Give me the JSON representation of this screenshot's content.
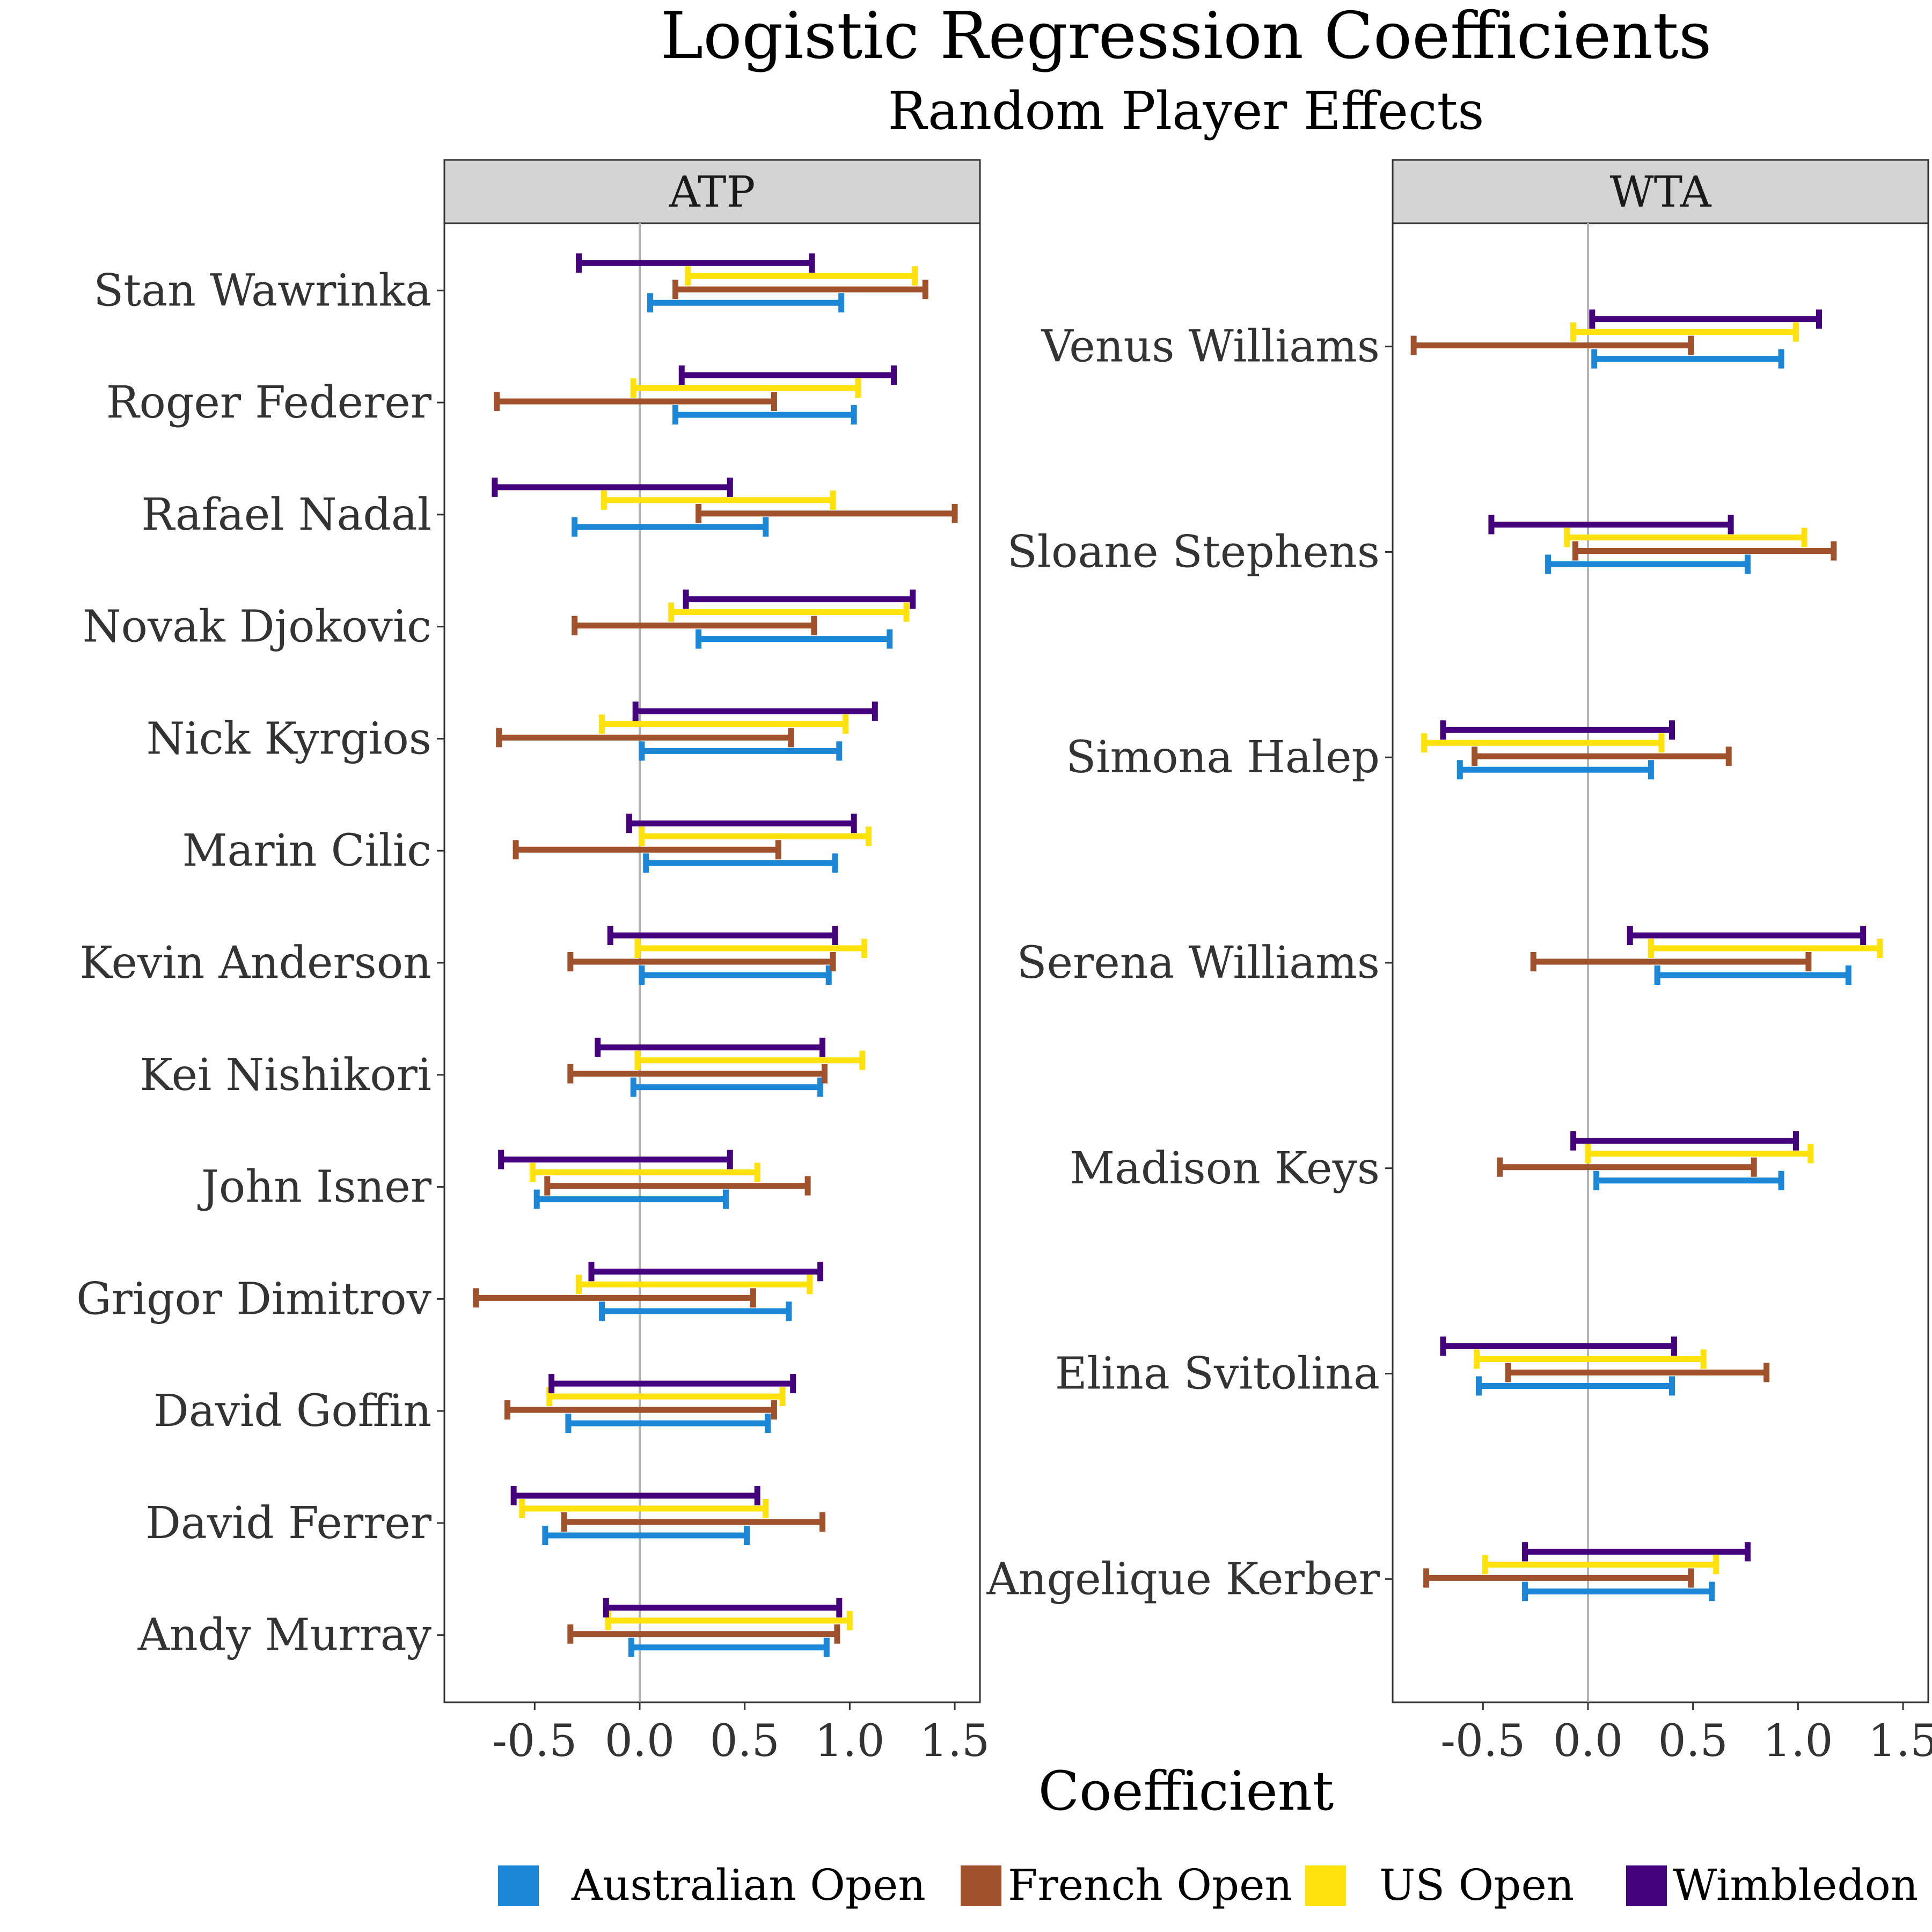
{
  "chart_data": {
    "type": "errorbar",
    "title": "Logistic Regression Coefficients",
    "subtitle": "Random Player Effects",
    "xlabel": "Coefficient",
    "xlim": [
      -0.93,
      1.62
    ],
    "xticks": [
      -0.5,
      0.0,
      0.5,
      1.0,
      1.5
    ],
    "xtick_labels": [
      "-0.5",
      "0.0",
      "0.5",
      "1.0",
      "1.5"
    ],
    "reference_line": 0,
    "series": [
      {
        "name": "Australian Open",
        "color": "#1B87D6"
      },
      {
        "name": "French Open",
        "color": "#A0522D"
      },
      {
        "name": "US Open",
        "color": "#FFE20C"
      },
      {
        "name": "Wimbledon",
        "color": "#44027D"
      }
    ],
    "legend_position": "bottom",
    "panels": [
      {
        "name": "ATP",
        "players": [
          {
            "name": "Stan Wawrinka",
            "intervals": {
              "Australian Open": [
                0.05,
                0.96
              ],
              "French Open": [
                0.17,
                1.36
              ],
              "US Open": [
                0.23,
                1.31
              ],
              "Wimbledon": [
                -0.29,
                0.82
              ]
            }
          },
          {
            "name": "Roger Federer",
            "intervals": {
              "Australian Open": [
                0.17,
                1.02
              ],
              "French Open": [
                -0.68,
                0.64
              ],
              "US Open": [
                -0.03,
                1.04
              ],
              "Wimbledon": [
                0.2,
                1.21
              ]
            }
          },
          {
            "name": "Rafael Nadal",
            "intervals": {
              "Australian Open": [
                -0.31,
                0.6
              ],
              "French Open": [
                0.28,
                1.5
              ],
              "US Open": [
                -0.17,
                0.92
              ],
              "Wimbledon": [
                -0.69,
                0.43
              ]
            }
          },
          {
            "name": "Novak Djokovic",
            "intervals": {
              "Australian Open": [
                0.28,
                1.19
              ],
              "French Open": [
                -0.31,
                0.83
              ],
              "US Open": [
                0.15,
                1.27
              ],
              "Wimbledon": [
                0.22,
                1.3
              ]
            }
          },
          {
            "name": "Nick Kyrgios",
            "intervals": {
              "Australian Open": [
                0.01,
                0.95
              ],
              "French Open": [
                -0.67,
                0.72
              ],
              "US Open": [
                -0.18,
                0.98
              ],
              "Wimbledon": [
                -0.02,
                1.12
              ]
            }
          },
          {
            "name": "Marin Cilic",
            "intervals": {
              "Australian Open": [
                0.03,
                0.93
              ],
              "French Open": [
                -0.59,
                0.66
              ],
              "US Open": [
                0.01,
                1.09
              ],
              "Wimbledon": [
                -0.05,
                1.02
              ]
            }
          },
          {
            "name": "Kevin Anderson",
            "intervals": {
              "Australian Open": [
                0.01,
                0.9
              ],
              "French Open": [
                -0.33,
                0.92
              ],
              "US Open": [
                -0.01,
                1.07
              ],
              "Wimbledon": [
                -0.14,
                0.93
              ]
            }
          },
          {
            "name": "Kei Nishikori",
            "intervals": {
              "Australian Open": [
                -0.03,
                0.86
              ],
              "French Open": [
                -0.33,
                0.88
              ],
              "US Open": [
                -0.01,
                1.06
              ],
              "Wimbledon": [
                -0.2,
                0.87
              ]
            }
          },
          {
            "name": "John Isner",
            "intervals": {
              "Australian Open": [
                -0.49,
                0.41
              ],
              "French Open": [
                -0.44,
                0.8
              ],
              "US Open": [
                -0.51,
                0.56
              ],
              "Wimbledon": [
                -0.66,
                0.43
              ]
            }
          },
          {
            "name": "Grigor Dimitrov",
            "intervals": {
              "Australian Open": [
                -0.18,
                0.71
              ],
              "French Open": [
                -0.78,
                0.54
              ],
              "US Open": [
                -0.29,
                0.81
              ],
              "Wimbledon": [
                -0.23,
                0.86
              ]
            }
          },
          {
            "name": "David Goffin",
            "intervals": {
              "Australian Open": [
                -0.34,
                0.61
              ],
              "French Open": [
                -0.63,
                0.64
              ],
              "US Open": [
                -0.43,
                0.68
              ],
              "Wimbledon": [
                -0.42,
                0.73
              ]
            }
          },
          {
            "name": "David Ferrer",
            "intervals": {
              "Australian Open": [
                -0.45,
                0.51
              ],
              "French Open": [
                -0.36,
                0.87
              ],
              "US Open": [
                -0.56,
                0.6
              ],
              "Wimbledon": [
                -0.6,
                0.56
              ]
            }
          },
          {
            "name": "Andy Murray",
            "intervals": {
              "Australian Open": [
                -0.04,
                0.89
              ],
              "French Open": [
                -0.33,
                0.94
              ],
              "US Open": [
                -0.15,
                1.0
              ],
              "Wimbledon": [
                -0.16,
                0.95
              ]
            }
          }
        ]
      },
      {
        "name": "WTA",
        "players": [
          {
            "name": "Venus Williams",
            "intervals": {
              "Australian Open": [
                0.03,
                0.92
              ],
              "French Open": [
                -0.83,
                0.49
              ],
              "US Open": [
                -0.07,
                0.99
              ],
              "Wimbledon": [
                0.02,
                1.1
              ]
            }
          },
          {
            "name": "Sloane Stephens",
            "intervals": {
              "Australian Open": [
                -0.19,
                0.76
              ],
              "French Open": [
                -0.06,
                1.17
              ],
              "US Open": [
                -0.1,
                1.03
              ],
              "Wimbledon": [
                -0.46,
                0.68
              ]
            }
          },
          {
            "name": "Simona Halep",
            "intervals": {
              "Australian Open": [
                -0.61,
                0.3
              ],
              "French Open": [
                -0.54,
                0.67
              ],
              "US Open": [
                -0.78,
                0.35
              ],
              "Wimbledon": [
                -0.69,
                0.4
              ]
            }
          },
          {
            "name": "Serena Williams",
            "intervals": {
              "Australian Open": [
                0.33,
                1.24
              ],
              "French Open": [
                -0.26,
                1.05
              ],
              "US Open": [
                0.3,
                1.39
              ],
              "Wimbledon": [
                0.2,
                1.31
              ]
            }
          },
          {
            "name": "Madison Keys",
            "intervals": {
              "Australian Open": [
                0.04,
                0.92
              ],
              "French Open": [
                -0.42,
                0.79
              ],
              "US Open": [
                0.0,
                1.06
              ],
              "Wimbledon": [
                -0.07,
                0.99
              ]
            }
          },
          {
            "name": "Elina Svitolina",
            "intervals": {
              "Australian Open": [
                -0.52,
                0.4
              ],
              "French Open": [
                -0.38,
                0.85
              ],
              "US Open": [
                -0.53,
                0.55
              ],
              "Wimbledon": [
                -0.69,
                0.41
              ]
            }
          },
          {
            "name": "Angelique Kerber",
            "intervals": {
              "Australian Open": [
                -0.3,
                0.59
              ],
              "French Open": [
                -0.77,
                0.49
              ],
              "US Open": [
                -0.49,
                0.61
              ],
              "Wimbledon": [
                -0.3,
                0.76
              ]
            }
          }
        ]
      }
    ]
  }
}
